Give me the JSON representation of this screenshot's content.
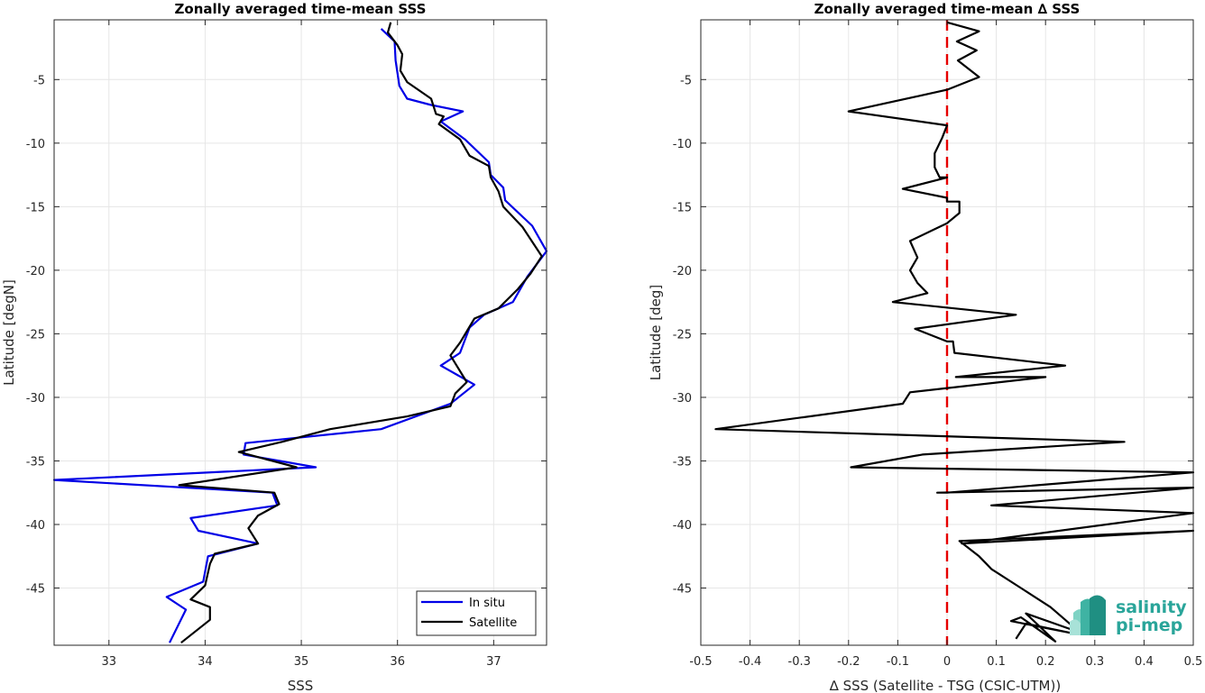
{
  "chart_data": [
    {
      "type": "line",
      "title": "Zonally averaged time-mean SSS",
      "xlabel": "SSS",
      "ylabel": "Latitude [degN]",
      "xlim": [
        32.43,
        37.55
      ],
      "ylim": [
        -49.5,
        -0.3
      ],
      "xticks": [
        33,
        34,
        35,
        36,
        37
      ],
      "yticks": [
        -5,
        -10,
        -15,
        -20,
        -25,
        -30,
        -35,
        -40,
        -45
      ],
      "grid": true,
      "legend_position": "bottom-right",
      "series": [
        {
          "name": "In situ",
          "color": "#0000e6",
          "x": [
            35.83,
            35.97,
            35.98,
            36.0,
            36.02,
            36.1,
            36.35,
            36.68,
            36.45,
            36.7,
            36.95,
            36.97,
            37.1,
            37.12,
            37.4,
            37.55,
            37.35,
            37.2,
            36.9,
            36.75,
            36.65,
            36.45,
            36.8,
            36.55,
            35.83,
            34.42,
            34.4,
            35.15,
            32.43,
            34.7,
            34.75,
            33.85,
            33.93,
            34.55,
            34.03,
            33.98,
            33.6,
            33.8,
            33.63
          ],
          "y": [
            -1.0,
            -2.0,
            -3.5,
            -4.5,
            -5.5,
            -6.5,
            -7.0,
            -7.5,
            -8.3,
            -9.7,
            -11.5,
            -12.5,
            -13.5,
            -14.5,
            -16.5,
            -18.5,
            -20.5,
            -22.5,
            -23.5,
            -24.5,
            -26.5,
            -27.5,
            -29.0,
            -30.5,
            -32.5,
            -33.6,
            -34.5,
            -35.5,
            -36.5,
            -37.5,
            -38.5,
            -39.5,
            -40.5,
            -41.5,
            -42.5,
            -44.5,
            -45.7,
            -46.7,
            -49.3
          ]
        },
        {
          "name": "Satellite",
          "color": "#000000",
          "x": [
            35.93,
            35.9,
            36.0,
            36.05,
            36.03,
            36.1,
            36.35,
            36.4,
            36.48,
            36.43,
            36.65,
            36.75,
            36.95,
            36.97,
            37.05,
            37.1,
            37.3,
            37.5,
            37.38,
            37.25,
            37.05,
            36.8,
            36.65,
            36.55,
            36.72,
            36.6,
            36.55,
            36.1,
            35.3,
            34.8,
            34.35,
            34.95,
            33.73,
            34.72,
            34.77,
            34.55,
            34.45,
            34.55,
            34.1,
            34.05,
            34.0,
            33.85,
            34.05,
            34.05,
            33.75
          ],
          "y": [
            -0.5,
            -1.3,
            -2.3,
            -3.0,
            -4.3,
            -5.2,
            -6.5,
            -7.7,
            -7.9,
            -8.5,
            -9.7,
            -11.0,
            -11.8,
            -12.7,
            -13.8,
            -15.0,
            -16.6,
            -18.9,
            -20.3,
            -21.5,
            -23.0,
            -23.8,
            -25.7,
            -26.7,
            -28.8,
            -29.7,
            -30.7,
            -31.5,
            -32.5,
            -33.5,
            -34.3,
            -35.5,
            -36.9,
            -37.5,
            -38.4,
            -39.3,
            -40.3,
            -41.5,
            -42.3,
            -43.1,
            -44.8,
            -45.9,
            -46.5,
            -47.5,
            -49.3
          ]
        }
      ]
    },
    {
      "type": "line",
      "title": "Zonally averaged time-mean ∆ SSS",
      "xlabel": "∆ SSS (Satellite - TSG (CSIC-UTM))",
      "ylabel": "Latitude [deg]",
      "xlim": [
        -0.5,
        0.5
      ],
      "ylim": [
        -49.5,
        -0.3
      ],
      "xticks": [
        -0.5,
        -0.4,
        -0.3,
        -0.2,
        -0.1,
        0,
        0.1,
        0.2,
        0.3,
        0.4,
        0.5
      ],
      "xticklabels": [
        "-0.5",
        "-0.4",
        "-0.3",
        "-0.2",
        "-0.1",
        "0",
        "0.1",
        "0.2",
        "0.3",
        "0.4",
        "0.5"
      ],
      "yticks": [
        -5,
        -10,
        -15,
        -20,
        -25,
        -30,
        -35,
        -40,
        -45
      ],
      "grid": true,
      "series": [
        {
          "color": "#000000",
          "x": [
            0.0,
            0.065,
            0.02,
            0.06,
            0.022,
            0.065,
            0.0,
            -0.2,
            0.0,
            -0.01,
            -0.025,
            -0.025,
            -0.015,
            0.0,
            -0.09,
            0.0,
            0.0,
            0.025,
            0.025,
            0.0,
            -0.075,
            -0.06,
            -0.075,
            -0.06,
            -0.04,
            -0.11,
            0.14,
            -0.065,
            0.0,
            0.012,
            0.015,
            0.24,
            0.018,
            0.2,
            -0.075,
            -0.09,
            -0.47,
            0.36,
            -0.05,
            -0.195,
            0.5,
            0.0,
            -0.02,
            0.5,
            0.09,
            0.5,
            0.03,
            0.5,
            0.025,
            0.065,
            0.08,
            0.09,
            0.15,
            0.21,
            0.27,
            0.16,
            0.22,
            0.15,
            0.13,
            0.26,
            0.16,
            0.14
          ],
          "y": [
            -0.5,
            -1.2,
            -2.0,
            -2.7,
            -3.5,
            -4.8,
            -5.8,
            -7.5,
            -8.6,
            -9.6,
            -10.8,
            -11.9,
            -12.7,
            -12.7,
            -13.6,
            -14.3,
            -14.6,
            -14.6,
            -15.5,
            -16.3,
            -17.7,
            -19.0,
            -20.0,
            -21.0,
            -21.8,
            -22.5,
            -23.5,
            -24.6,
            -25.6,
            -25.6,
            -26.5,
            -27.5,
            -28.4,
            -28.4,
            -29.6,
            -30.5,
            -32.5,
            -33.5,
            -34.5,
            -35.5,
            -35.9,
            -37.5,
            -37.5,
            -37.1,
            -38.5,
            -39.1,
            -41.5,
            -40.5,
            -41.3,
            -42.5,
            -43.1,
            -43.5,
            -45.0,
            -46.5,
            -48.5,
            -47.0,
            -49.2,
            -47.3,
            -47.6,
            -48.6,
            -47.8,
            -49.0
          ]
        }
      ],
      "reference_line": {
        "x": 0,
        "color": "#e60000",
        "style": "dashed"
      }
    }
  ],
  "logo": {
    "line1": "salinity",
    "line2": "pi-mep"
  },
  "colors": {
    "grid": "#e6e6e6",
    "axis": "#262626",
    "logo": "#2aa59a"
  }
}
